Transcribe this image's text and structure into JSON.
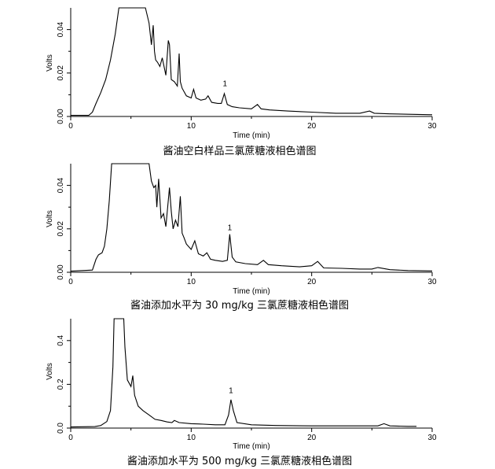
{
  "chart_data": [
    {
      "type": "line",
      "title": "",
      "caption": "酱油空白样品三氯蔗糖液相色谱图",
      "xlabel": "Time (min)",
      "ylabel": "Volts",
      "xlim": [
        0,
        30
      ],
      "ylim": [
        0,
        0.05
      ],
      "xticks": [
        0,
        10,
        20,
        30
      ],
      "xtick_labels": [
        "0",
        "10",
        "20",
        "30"
      ],
      "yticks": [
        0,
        0.02,
        0.04
      ],
      "ytick_labels": [
        "0.00",
        "0.02",
        "0.04"
      ],
      "peak_label": {
        "text": "1",
        "x": 12.8,
        "y": 0.0125
      },
      "series": [
        {
          "x": [
            0,
            1.5,
            1.8,
            2.1,
            2.5,
            2.9,
            3.3,
            3.7,
            4.0,
            6.2,
            6.5,
            6.7,
            6.85,
            6.95,
            7.05,
            7.2,
            7.4,
            7.6,
            7.9,
            8.1,
            8.2,
            8.35,
            8.6,
            8.85,
            9.0,
            9.1,
            9.25,
            9.6,
            10.0,
            10.2,
            10.4,
            10.8,
            11.2,
            11.4,
            11.7,
            12.2,
            12.5,
            12.75,
            13.0,
            13.4,
            14.0,
            15.0,
            15.5,
            15.8,
            16.5,
            18.0,
            20.0,
            22.0,
            24.0,
            24.8,
            25.2,
            26.5,
            28.0,
            30.0
          ],
          "y": [
            0.0005,
            0.0005,
            0.002,
            0.006,
            0.011,
            0.017,
            0.026,
            0.038,
            0.05,
            0.05,
            0.043,
            0.033,
            0.042,
            0.03,
            0.026,
            0.025,
            0.023,
            0.027,
            0.019,
            0.035,
            0.033,
            0.017,
            0.016,
            0.014,
            0.029,
            0.016,
            0.013,
            0.0095,
            0.0085,
            0.0125,
            0.0085,
            0.0075,
            0.008,
            0.0095,
            0.0065,
            0.006,
            0.006,
            0.0105,
            0.0055,
            0.0045,
            0.004,
            0.0035,
            0.0055,
            0.0035,
            0.003,
            0.0025,
            0.002,
            0.0015,
            0.0015,
            0.0025,
            0.0015,
            0.0012,
            0.001,
            0.0008
          ]
        }
      ]
    },
    {
      "type": "line",
      "title": "",
      "caption": "酱油添加水平为 30 mg/kg 三氯蔗糖液相色谱图",
      "xlabel": "Time (min)",
      "ylabel": "Volts",
      "xlim": [
        0,
        30
      ],
      "ylim": [
        0,
        0.05
      ],
      "xticks": [
        0,
        10,
        20,
        30
      ],
      "xtick_labels": [
        "0",
        "10",
        "20",
        "30"
      ],
      "yticks": [
        0,
        0.02,
        0.04
      ],
      "ytick_labels": [
        "0.00",
        "0.02",
        "0.04"
      ],
      "peak_label": {
        "text": "1",
        "x": 13.2,
        "y": 0.018
      },
      "series": [
        {
          "x": [
            0,
            1.8,
            2.1,
            2.3,
            2.6,
            2.8,
            3.0,
            3.2,
            3.4,
            6.5,
            6.7,
            6.9,
            7.05,
            7.15,
            7.3,
            7.5,
            7.7,
            7.9,
            8.2,
            8.35,
            8.5,
            8.7,
            8.9,
            9.1,
            9.25,
            9.4,
            9.6,
            10.0,
            10.3,
            10.6,
            11.0,
            11.3,
            11.6,
            12.0,
            12.6,
            13.0,
            13.2,
            13.4,
            13.7,
            14.5,
            15.5,
            16.0,
            16.4,
            17.5,
            19.0,
            20.0,
            20.5,
            21.0,
            22.5,
            24.0,
            25.0,
            25.5,
            26.5,
            28.0,
            30.0
          ],
          "y": [
            0.0005,
            0.001,
            0.006,
            0.008,
            0.009,
            0.012,
            0.02,
            0.033,
            0.05,
            0.05,
            0.042,
            0.039,
            0.04,
            0.03,
            0.043,
            0.025,
            0.027,
            0.021,
            0.039,
            0.028,
            0.02,
            0.024,
            0.021,
            0.035,
            0.018,
            0.016,
            0.013,
            0.0105,
            0.0145,
            0.0085,
            0.0075,
            0.009,
            0.006,
            0.0055,
            0.005,
            0.0055,
            0.0175,
            0.007,
            0.0048,
            0.004,
            0.0035,
            0.0055,
            0.0035,
            0.003,
            0.0025,
            0.003,
            0.005,
            0.002,
            0.0018,
            0.0015,
            0.0015,
            0.0022,
            0.0012,
            0.0008,
            0.0006
          ]
        }
      ]
    },
    {
      "type": "line",
      "title": "",
      "caption": "酱油添加水平为 500 mg/kg 三氯蔗糖液相色谱图",
      "xlabel": "Time (min)",
      "ylabel": "Volts",
      "xlim": [
        0,
        30
      ],
      "ylim": [
        0,
        0.5
      ],
      "xticks": [
        0,
        10,
        20,
        30
      ],
      "xtick_labels": [
        "0",
        "10",
        "20",
        "30"
      ],
      "yticks": [
        0,
        0.2,
        0.4
      ],
      "ytick_labels": [
        "0.0",
        "0.2",
        "0.4"
      ],
      "peak_label": {
        "text": "1",
        "x": 13.3,
        "y": 0.145
      },
      "series": [
        {
          "x": [
            0,
            2.0,
            2.5,
            3.0,
            3.3,
            3.5,
            3.6,
            4.4,
            4.5,
            4.7,
            5.0,
            5.15,
            5.3,
            5.6,
            6.0,
            6.5,
            7.0,
            7.5,
            8.0,
            8.4,
            8.6,
            9.0,
            10.0,
            11.0,
            12.0,
            12.8,
            13.1,
            13.3,
            13.5,
            13.8,
            15.0,
            17.0,
            20.0,
            22.0,
            24.0,
            25.5,
            26.0,
            26.5,
            28.0,
            28.7
          ],
          "y": [
            0.005,
            0.007,
            0.012,
            0.03,
            0.08,
            0.28,
            0.5,
            0.5,
            0.37,
            0.22,
            0.19,
            0.24,
            0.15,
            0.1,
            0.08,
            0.06,
            0.04,
            0.035,
            0.028,
            0.025,
            0.035,
            0.025,
            0.02,
            0.018,
            0.015,
            0.015,
            0.06,
            0.13,
            0.08,
            0.025,
            0.015,
            0.012,
            0.01,
            0.01,
            0.01,
            0.01,
            0.02,
            0.01,
            0.008,
            0.008
          ]
        }
      ]
    }
  ]
}
